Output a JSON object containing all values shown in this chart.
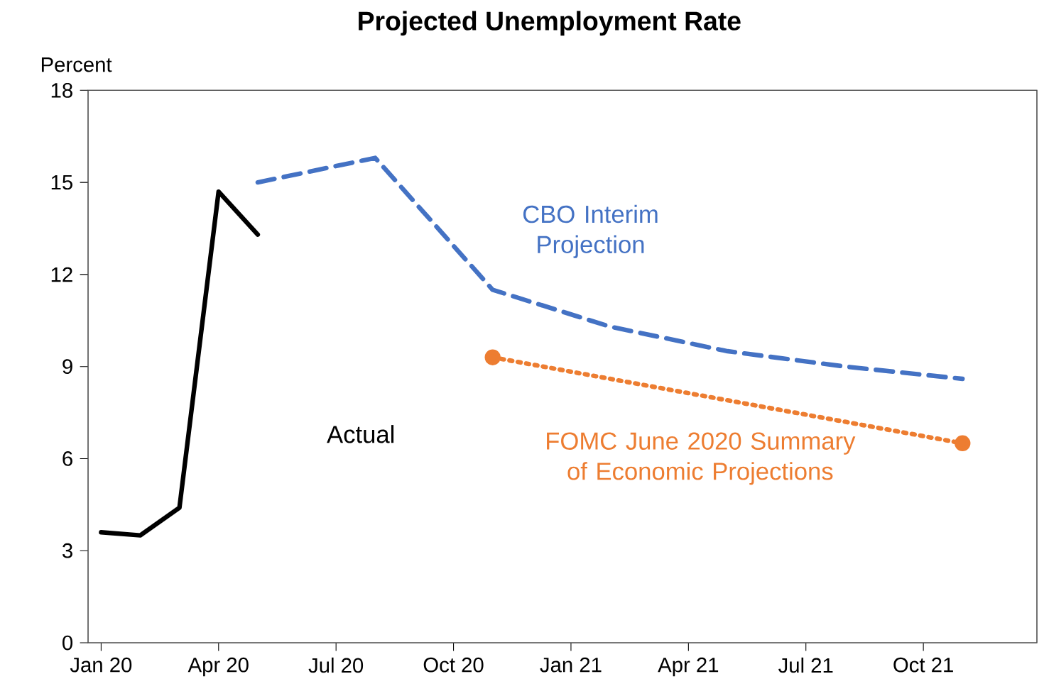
{
  "chart_data": {
    "type": "line",
    "title": "Projected Unemployment Rate",
    "ylabel": "Percent",
    "xlim": [
      "2019-12-21",
      "2021-12-28"
    ],
    "ylim": [
      0,
      18
    ],
    "yticks": [
      0,
      3,
      6,
      9,
      12,
      15,
      18
    ],
    "xticks": [
      {
        "value": "2020-01",
        "label": "Jan 20"
      },
      {
        "value": "2020-04",
        "label": "Apr 20"
      },
      {
        "value": "2020-07",
        "label": "Jul 20"
      },
      {
        "value": "2020-10",
        "label": "Oct 20"
      },
      {
        "value": "2021-01",
        "label": "Jan 21"
      },
      {
        "value": "2021-04",
        "label": "Apr 21"
      },
      {
        "value": "2021-07",
        "label": "Jul 21"
      },
      {
        "value": "2021-10",
        "label": "Oct 21"
      }
    ],
    "grid": false,
    "legend": false,
    "series": [
      {
        "name": "Actual",
        "color": "#000000",
        "line_style": "solid",
        "marker": "none",
        "x": [
          "2020-01",
          "2020-02",
          "2020-03",
          "2020-04",
          "2020-05"
        ],
        "values": [
          3.6,
          3.5,
          4.4,
          14.7,
          13.3
        ]
      },
      {
        "name": "CBO Interim Projection",
        "color": "#4472c4",
        "line_style": "dashed",
        "marker": "none",
        "x": [
          "2020-05",
          "2020-08",
          "2020-11",
          "2021-02",
          "2021-05",
          "2021-08",
          "2021-11"
        ],
        "values": [
          15.0,
          15.8,
          11.5,
          10.3,
          9.5,
          9.0,
          8.6
        ]
      },
      {
        "name": "FOMC June 2020 Summary of Economic Projections",
        "color": "#ed7d31",
        "line_style": "dotted",
        "marker": "circle",
        "x": [
          "2020-11",
          "2021-11"
        ],
        "values": [
          9.3,
          6.5
        ]
      }
    ]
  }
}
